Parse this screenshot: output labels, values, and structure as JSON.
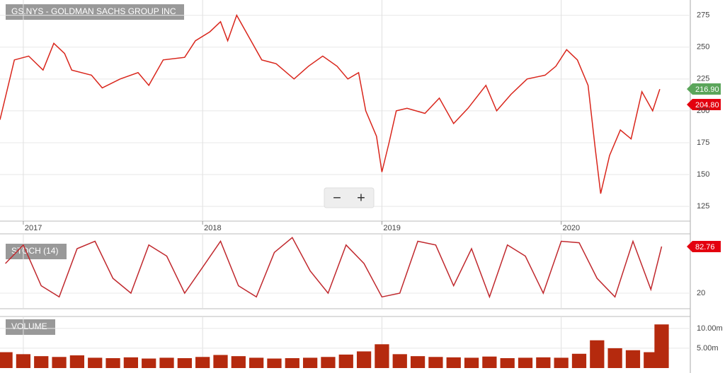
{
  "chart_data": [
    {
      "type": "line",
      "title": "GS.NYS - GOLDMAN SACHS GROUP INC",
      "color": "#d9261c",
      "x": [
        2016.87,
        2016.95,
        2017.03,
        2017.11,
        2017.17,
        2017.23,
        2017.27,
        2017.38,
        2017.44,
        2017.54,
        2017.64,
        2017.7,
        2017.78,
        2017.9,
        2017.96,
        2018.04,
        2018.1,
        2018.14,
        2018.19,
        2018.25,
        2018.33,
        2018.41,
        2018.51,
        2018.59,
        2018.67,
        2018.75,
        2018.81,
        2018.87,
        2018.91,
        2018.97,
        2019.0,
        2019.04,
        2019.08,
        2019.14,
        2019.24,
        2019.32,
        2019.4,
        2019.48,
        2019.58,
        2019.64,
        2019.72,
        2019.81,
        2019.91,
        2019.97,
        2020.03,
        2020.09,
        2020.15,
        2020.19,
        2020.22,
        2020.27,
        2020.33,
        2020.39,
        2020.45,
        2020.51,
        2020.55
      ],
      "values": [
        193,
        240,
        243,
        232,
        253,
        245,
        232,
        228,
        218,
        225,
        230,
        220,
        240,
        242,
        255,
        262,
        270,
        255,
        275,
        260,
        240,
        237,
        225,
        235,
        243,
        235,
        225,
        230,
        200,
        180,
        152,
        175,
        200,
        202,
        198,
        210,
        190,
        202,
        220,
        200,
        213,
        225,
        228,
        235,
        248,
        240,
        220,
        170,
        135,
        165,
        185,
        178,
        215,
        200,
        217
      ],
      "xlim": [
        2016.87,
        2020.72
      ],
      "xticks": [
        2017,
        2018,
        2019,
        2020
      ],
      "ylim": [
        114,
        287
      ],
      "yticks": [
        125,
        150,
        175,
        200,
        225,
        250,
        275
      ],
      "grid": true,
      "price_tags": [
        "216.90",
        "204.80"
      ],
      "zoom_out": "−",
      "zoom_in": "+"
    },
    {
      "type": "line",
      "title": "STOCH (14)",
      "color": "#c0282d",
      "x": [
        2016.9,
        2017.0,
        2017.1,
        2017.2,
        2017.3,
        2017.4,
        2017.5,
        2017.6,
        2017.7,
        2017.8,
        2017.9,
        2018.0,
        2018.1,
        2018.2,
        2018.3,
        2018.4,
        2018.5,
        2018.6,
        2018.7,
        2018.8,
        2018.9,
        2019.0,
        2019.1,
        2019.2,
        2019.3,
        2019.4,
        2019.5,
        2019.6,
        2019.7,
        2019.8,
        2019.9,
        2020.0,
        2020.1,
        2020.2,
        2020.3,
        2020.4,
        2020.5,
        2020.56
      ],
      "values": [
        60,
        85,
        30,
        15,
        80,
        90,
        40,
        20,
        85,
        70,
        20,
        55,
        90,
        30,
        15,
        75,
        95,
        50,
        20,
        85,
        60,
        15,
        20,
        90,
        85,
        30,
        80,
        15,
        85,
        70,
        20,
        90,
        88,
        40,
        15,
        90,
        25,
        83
      ],
      "xlim": [
        2016.87,
        2020.72
      ],
      "ylim": [
        0,
        100
      ],
      "yticks": [
        20
      ],
      "grid": true,
      "last_tag": "82.76"
    },
    {
      "type": "bar",
      "title": "VOLUME",
      "color": "#b52a0e",
      "x": [
        2016.9,
        2017.0,
        2017.1,
        2017.2,
        2017.3,
        2017.4,
        2017.5,
        2017.6,
        2017.7,
        2017.8,
        2017.9,
        2018.0,
        2018.1,
        2018.2,
        2018.3,
        2018.4,
        2018.5,
        2018.6,
        2018.7,
        2018.8,
        2018.9,
        2019.0,
        2019.1,
        2019.2,
        2019.3,
        2019.4,
        2019.5,
        2019.6,
        2019.7,
        2019.8,
        2019.9,
        2020.0,
        2020.1,
        2020.2,
        2020.3,
        2020.4,
        2020.5,
        2020.56
      ],
      "values": [
        4000000,
        3500000,
        3000000,
        2800000,
        3200000,
        2600000,
        2500000,
        2700000,
        2400000,
        2600000,
        2500000,
        2800000,
        3300000,
        3000000,
        2600000,
        2400000,
        2500000,
        2600000,
        2800000,
        3400000,
        4200000,
        6000000,
        3500000,
        3000000,
        2800000,
        2700000,
        2600000,
        2900000,
        2500000,
        2600000,
        2700000,
        2600000,
        3600000,
        7000000,
        5000000,
        4500000,
        4000000,
        11000000
      ],
      "xlim": [
        2016.87,
        2020.72
      ],
      "ylim": [
        0,
        13000000
      ],
      "yticks": [
        {
          "value": 5000000,
          "label": "5.00m"
        },
        {
          "value": 10000000,
          "label": "10.00m"
        }
      ],
      "grid": true
    }
  ]
}
